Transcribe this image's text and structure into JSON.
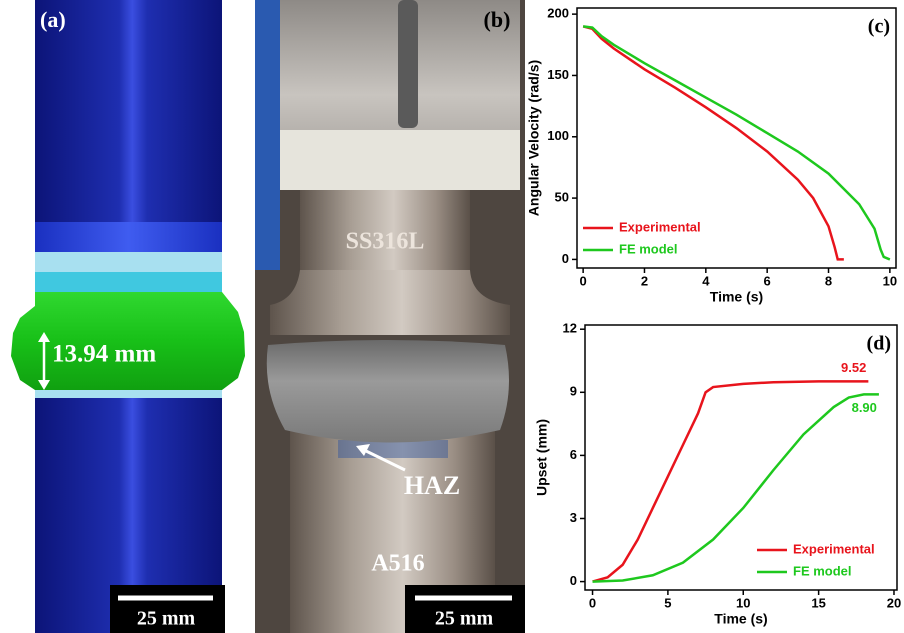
{
  "panels": {
    "a": {
      "label": "(a)",
      "dimension": "13.94 mm",
      "scale_bar": "25 mm"
    },
    "b": {
      "label": "(b)",
      "labels": [
        "SS316L",
        "HAZ",
        "A516"
      ],
      "scale_bar": "25 mm"
    }
  },
  "chart_data": [
    {
      "type": "line",
      "panel_label": "(c)",
      "x_label": "Time (s)",
      "y_label": "Angular Velocity (rad/s)",
      "xlim": [
        -0.2,
        10.2
      ],
      "ylim": [
        -7,
        205
      ],
      "xticks": [
        0,
        2,
        4,
        6,
        8,
        10
      ],
      "yticks": [
        0,
        50,
        100,
        150,
        200
      ],
      "legend": "lower left",
      "series": [
        {
          "name": "Experimental",
          "color": "#e8141c",
          "x": [
            0,
            0.3,
            0.6,
            1,
            2,
            3,
            4,
            5,
            6,
            7,
            7.5,
            8,
            8.2,
            8.3,
            8.5
          ],
          "values": [
            190,
            188,
            180,
            172,
            155,
            140,
            124,
            107,
            88,
            65,
            50,
            27,
            10,
            0,
            0
          ]
        },
        {
          "name": "FE model",
          "color": "#1ec81e",
          "x": [
            0,
            0.3,
            0.6,
            1,
            2,
            3,
            4,
            5,
            6,
            7,
            8,
            9,
            9.5,
            9.7,
            9.8,
            10
          ],
          "values": [
            190,
            189,
            182,
            175,
            160,
            146,
            132,
            118,
            103,
            88,
            70,
            45,
            25,
            8,
            2,
            0
          ]
        }
      ]
    },
    {
      "type": "line",
      "panel_label": "(d)",
      "x_label": "Time (s)",
      "y_label": "Upset (mm)",
      "xlim": [
        -0.5,
        20.2
      ],
      "ylim": [
        -0.4,
        12.2
      ],
      "xticks": [
        0,
        5,
        10,
        15,
        20
      ],
      "yticks": [
        0,
        3,
        6,
        9,
        12
      ],
      "legend": "lower right",
      "series": [
        {
          "name": "Experimental",
          "color": "#e8141c",
          "end_label": "9.52",
          "x": [
            0,
            1,
            2,
            3,
            4,
            5,
            6,
            7,
            7.5,
            8,
            10,
            12,
            15,
            18.3
          ],
          "values": [
            0,
            0.2,
            0.8,
            2,
            3.5,
            5,
            6.5,
            8,
            9,
            9.25,
            9.4,
            9.48,
            9.52,
            9.52
          ]
        },
        {
          "name": "FE model",
          "color": "#1ec81e",
          "end_label": "8.90",
          "x": [
            0,
            2,
            4,
            6,
            8,
            10,
            12,
            14,
            16,
            17,
            18,
            19
          ],
          "values": [
            0,
            0.05,
            0.3,
            0.9,
            2,
            3.5,
            5.3,
            7,
            8.3,
            8.75,
            8.9,
            8.9
          ]
        }
      ]
    }
  ]
}
